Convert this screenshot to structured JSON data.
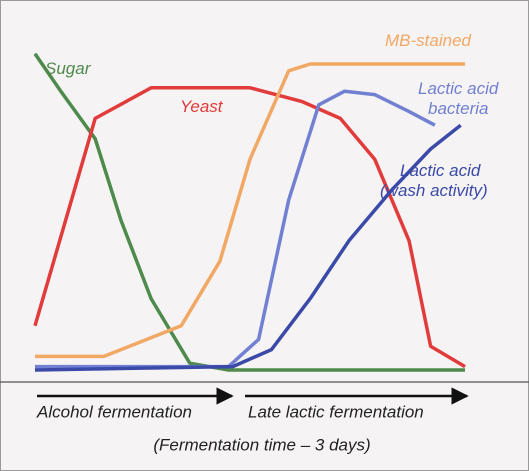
{
  "chart_data": {
    "type": "line",
    "xlim": [
      0,
      100
    ],
    "ylim": [
      0,
      100
    ],
    "phases": [
      "Alcohol fermentation",
      "Late lactic fermentation"
    ],
    "x_label": "(Fermentation time – 3 days)",
    "series": [
      {
        "name": [
          "Sugar"
        ],
        "color": "#4e8a4c",
        "x": [
          0,
          6,
          14,
          20,
          27,
          36,
          45,
          100
        ],
        "values": [
          93,
          82,
          68,
          44,
          21,
          2,
          0,
          0
        ]
      },
      {
        "name": [
          "Yeast"
        ],
        "color": "#e23b3b",
        "x": [
          0,
          14,
          27,
          50,
          62,
          71,
          79,
          87,
          92,
          100
        ],
        "values": [
          13,
          74,
          83,
          83,
          79,
          74,
          62,
          38,
          7,
          1
        ]
      },
      {
        "name": [
          "MB-stained"
        ],
        "color": "#f2a865",
        "x": [
          0,
          16,
          34,
          43,
          50,
          59,
          64,
          100
        ],
        "values": [
          4,
          4,
          13,
          32,
          62,
          88,
          90,
          90
        ]
      },
      {
        "name": [
          "Lactic acid",
          "bacteria"
        ],
        "color": "#7180d2",
        "x": [
          0,
          45,
          52,
          59,
          66,
          72,
          79,
          87,
          93
        ],
        "values": [
          1,
          1,
          9,
          50,
          78,
          82,
          81,
          76,
          72
        ]
      },
      {
        "name": [
          "Lactic acid",
          "(wash activity)"
        ],
        "color": "#3b4aa8",
        "x": [
          0,
          46,
          55,
          64,
          73,
          83,
          92,
          99
        ],
        "values": [
          0,
          1,
          6,
          21,
          38,
          53,
          65,
          72
        ]
      }
    ]
  }
}
